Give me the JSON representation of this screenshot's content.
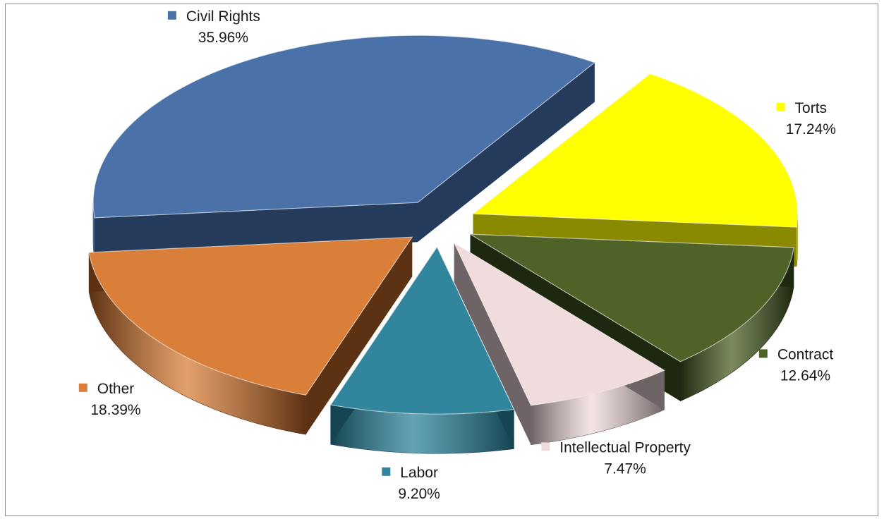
{
  "chart_data": {
    "type": "pie",
    "title": "",
    "slices": [
      {
        "label": "Civil Rights",
        "value": 35.96,
        "value_label": "35.96%",
        "color": "#4A72A8",
        "side_color": "#253B5C"
      },
      {
        "label": "Torts",
        "value": 17.24,
        "value_label": "17.24%",
        "color": "#FFFF00",
        "side_color": "#8A8A00"
      },
      {
        "label": "Contract",
        "value": 12.64,
        "value_label": "12.64%",
        "color": "#4F6228",
        "side_color": "#1E2810"
      },
      {
        "label": "Intellectual Property",
        "value": 7.47,
        "value_label": "7.47%",
        "color": "#F1DCDD",
        "side_color": "#6E6465"
      },
      {
        "label": "Labor",
        "value": 9.2,
        "value_label": "9.20%",
        "color": "#31859C",
        "side_color": "#154452"
      },
      {
        "label": "Other",
        "value": 18.39,
        "value_label": "18.39%",
        "color": "#D97F3A",
        "side_color": "#5C3213"
      }
    ],
    "legend": "inline labels with color markers",
    "style": "3d exploded pie"
  }
}
